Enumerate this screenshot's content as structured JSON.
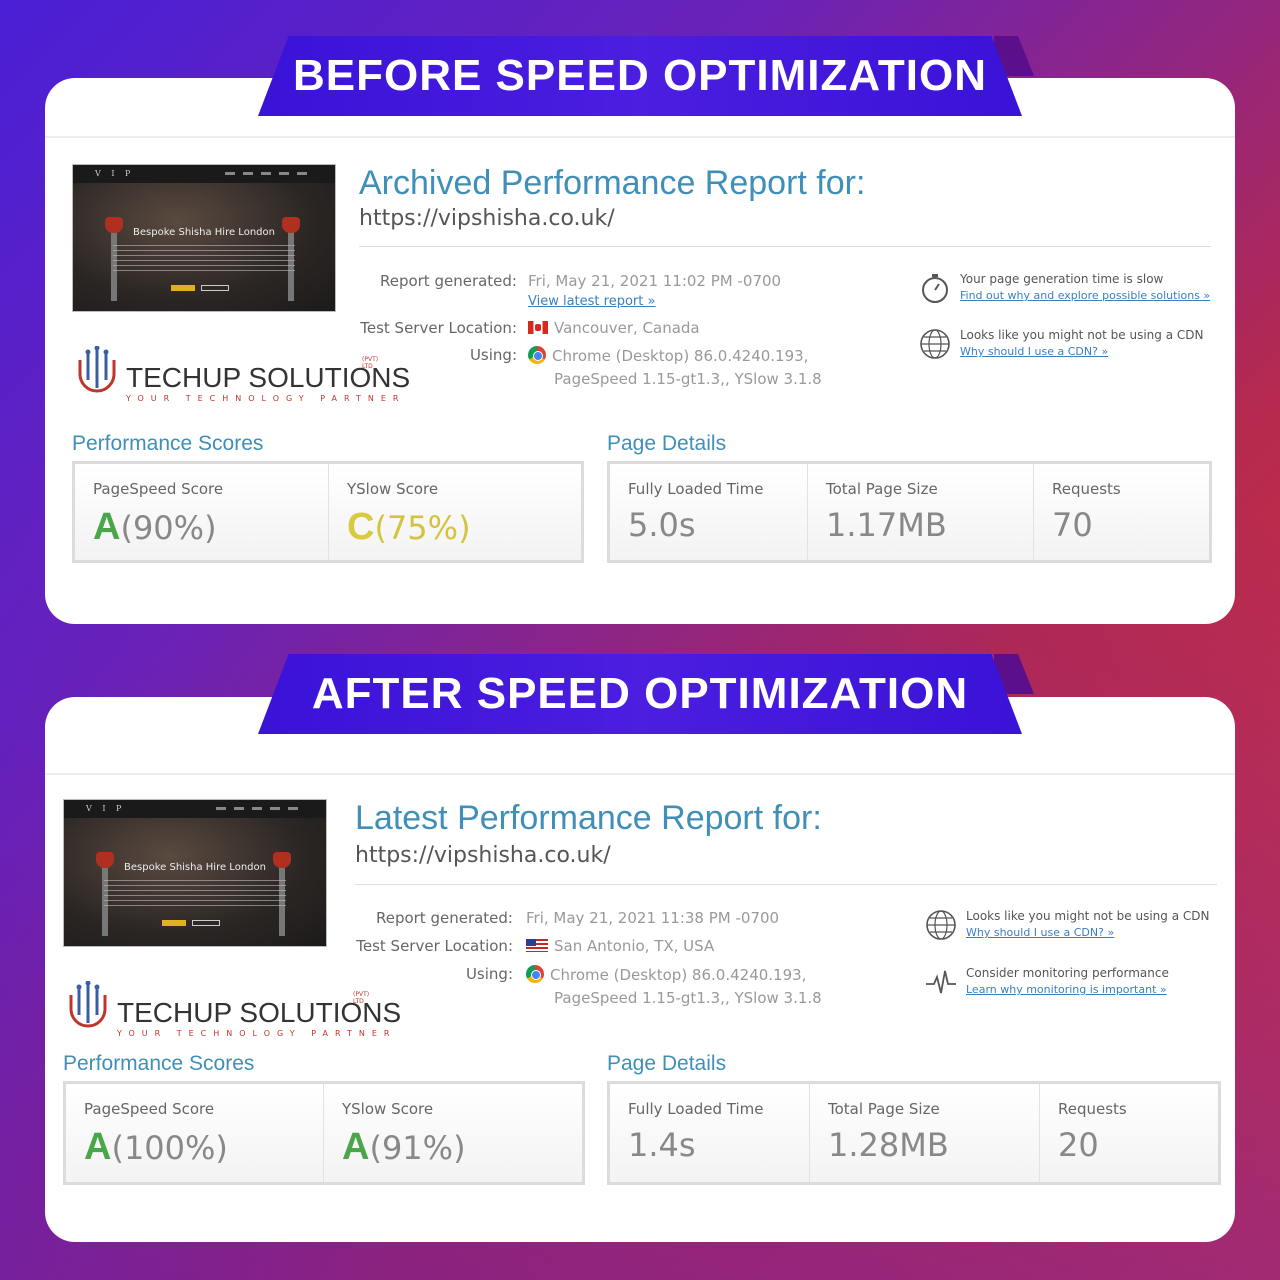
{
  "colors": {
    "accent_title": "#3f8fb8",
    "grade_a": "#4aa64a",
    "grade_c": "#d9c93c",
    "banner": "#3a12d8"
  },
  "before": {
    "banner": "BEFORE SPEED OPTIMIZATION",
    "thumb_heading": "Bespoke Shisha Hire London",
    "thumb_brand": "V I P",
    "title": "Archived Performance Report for:",
    "url": "https://vipshisha.co.uk/",
    "report_generated_label": "Report generated:",
    "report_generated_value": "Fri, May 21, 2021 11:02 PM -0700",
    "view_latest_link": "View latest report »",
    "server_label": "Test Server Location:",
    "server_value": "Vancouver, Canada",
    "using_label": "Using:",
    "using_line1": "Chrome (Desktop) 86.0.4240.193,",
    "using_line2": "PageSpeed 1.15-gt1.3,, YSlow 3.1.8",
    "tips": [
      {
        "icon": "stopwatch-icon",
        "text": "Your page generation time is slow",
        "link": "Find out why and explore possible solutions »"
      },
      {
        "icon": "globe-icon",
        "text": "Looks like you might not be using a CDN",
        "link": "Why should I use a CDN? »"
      }
    ],
    "performance_title": "Performance Scores",
    "page_details_title": "Page Details",
    "pagespeed_label": "PageSpeed Score",
    "pagespeed_grade": "A",
    "pagespeed_pct": "(90%)",
    "yslow_label": "YSlow Score",
    "yslow_grade": "C",
    "yslow_pct": "(75%)",
    "loaded_label": "Fully Loaded Time",
    "loaded_value": "5.0s",
    "size_label": "Total Page Size",
    "size_value": "1.17MB",
    "requests_label": "Requests",
    "requests_value": "70"
  },
  "after": {
    "banner": "AFTER SPEED OPTIMIZATION",
    "thumb_heading": "Bespoke Shisha Hire London",
    "thumb_brand": "V I P",
    "title": "Latest Performance Report for:",
    "url": "https://vipshisha.co.uk/",
    "report_generated_label": "Report generated:",
    "report_generated_value": "Fri, May 21, 2021 11:38 PM -0700",
    "server_label": "Test Server Location:",
    "server_value": "San Antonio, TX, USA",
    "using_label": "Using:",
    "using_line1": "Chrome (Desktop) 86.0.4240.193,",
    "using_line2": "PageSpeed 1.15-gt1.3,, YSlow 3.1.8",
    "tips": [
      {
        "icon": "globe-icon",
        "text": "Looks like you might not be using a CDN",
        "link": "Why should I use a CDN? »"
      },
      {
        "icon": "pulse-icon",
        "text": "Consider monitoring performance",
        "link": "Learn why monitoring is important »"
      }
    ],
    "performance_title": "Performance Scores",
    "page_details_title": "Page Details",
    "pagespeed_label": "PageSpeed Score",
    "pagespeed_grade": "A",
    "pagespeed_pct": "(100%)",
    "yslow_label": "YSlow Score",
    "yslow_grade": "A",
    "yslow_pct": "(91%)",
    "loaded_label": "Fully Loaded Time",
    "loaded_value": "1.4s",
    "size_label": "Total Page Size",
    "size_value": "1.28MB",
    "requests_label": "Requests",
    "requests_value": "20"
  },
  "logo": {
    "name": "TECHUP SOLUTIONS",
    "tagline": "YOUR TECHNOLOGY PARTNER",
    "pvt": "(PVT) LTD"
  }
}
